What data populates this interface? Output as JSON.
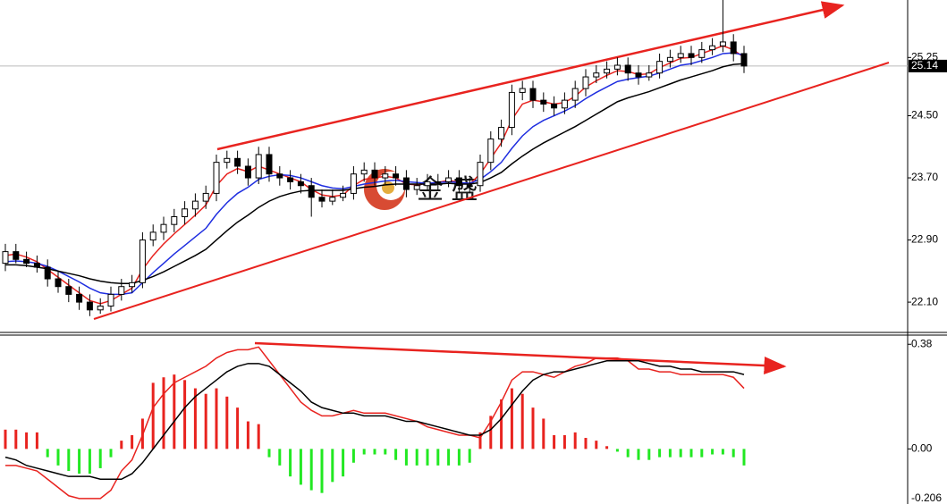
{
  "chart_data": [
    {
      "type": "candlestick",
      "open": [
        22.6,
        22.75,
        22.65,
        22.6,
        22.55,
        22.4,
        22.3,
        22.2,
        22.1,
        22.0,
        22.05,
        22.2,
        22.3,
        22.35,
        22.9,
        23.0,
        23.1,
        23.2,
        23.3,
        23.4,
        23.5,
        23.9,
        23.95,
        23.85,
        23.7,
        24.0,
        23.75,
        23.7,
        23.65,
        23.6,
        23.45,
        23.4,
        23.45,
        23.5,
        23.75,
        23.8,
        23.7,
        23.75,
        23.7,
        23.55,
        23.6,
        23.65,
        23.65,
        23.7,
        23.6,
        23.6,
        23.9,
        24.2,
        24.35,
        24.8,
        24.85,
        24.7,
        24.65,
        24.6,
        24.7,
        24.85,
        25.0,
        25.05,
        25.1,
        25.15,
        25.05,
        25.0,
        25.05,
        25.2,
        25.25,
        25.3,
        25.25,
        25.35,
        25.4,
        25.45,
        25.3
      ],
      "high": [
        22.85,
        22.85,
        22.75,
        22.7,
        22.65,
        22.5,
        22.4,
        22.3,
        22.2,
        22.15,
        22.3,
        22.4,
        22.45,
        23.0,
        23.1,
        23.2,
        23.3,
        23.4,
        23.5,
        23.6,
        24.0,
        24.05,
        24.05,
        23.95,
        24.1,
        24.1,
        23.85,
        23.8,
        23.75,
        23.7,
        23.55,
        23.55,
        23.6,
        23.85,
        23.9,
        23.9,
        23.85,
        23.85,
        23.8,
        23.7,
        23.75,
        23.75,
        23.8,
        23.8,
        23.7,
        24.0,
        24.3,
        24.45,
        24.9,
        24.95,
        24.95,
        24.8,
        24.75,
        24.8,
        24.95,
        25.1,
        25.15,
        25.2,
        25.25,
        25.25,
        25.15,
        25.15,
        25.3,
        25.35,
        25.4,
        25.4,
        25.45,
        25.5,
        25.99,
        25.55,
        25.4
      ],
      "low": [
        22.5,
        22.6,
        22.55,
        22.48,
        22.3,
        22.22,
        22.1,
        22.0,
        21.92,
        21.95,
        21.98,
        22.12,
        22.22,
        22.28,
        22.82,
        22.9,
        23.0,
        23.1,
        23.2,
        23.3,
        23.4,
        23.82,
        23.75,
        23.6,
        23.62,
        23.65,
        23.6,
        23.55,
        23.5,
        23.2,
        23.32,
        23.35,
        23.4,
        23.42,
        23.65,
        23.6,
        23.62,
        23.6,
        23.45,
        23.48,
        23.55,
        23.55,
        23.58,
        23.5,
        23.5,
        23.52,
        23.8,
        24.1,
        24.25,
        24.7,
        24.6,
        24.55,
        24.5,
        24.52,
        24.6,
        24.75,
        24.92,
        24.98,
        25.02,
        24.95,
        24.9,
        24.95,
        24.98,
        25.12,
        25.18,
        25.15,
        25.18,
        25.28,
        25.32,
        25.2,
        25.05
      ],
      "close": [
        22.75,
        22.65,
        22.6,
        22.55,
        22.4,
        22.3,
        22.2,
        22.1,
        22.0,
        22.05,
        22.2,
        22.3,
        22.35,
        22.9,
        23.0,
        23.1,
        23.2,
        23.3,
        23.4,
        23.5,
        23.9,
        23.95,
        23.85,
        23.7,
        24.0,
        23.75,
        23.7,
        23.65,
        23.6,
        23.45,
        23.4,
        23.45,
        23.5,
        23.75,
        23.8,
        23.7,
        23.75,
        23.7,
        23.55,
        23.6,
        23.65,
        23.65,
        23.7,
        23.6,
        23.6,
        23.9,
        24.2,
        24.35,
        24.8,
        24.85,
        24.7,
        24.65,
        24.6,
        24.7,
        24.85,
        25.0,
        25.05,
        25.1,
        25.15,
        25.05,
        25.0,
        25.05,
        25.2,
        25.25,
        25.3,
        25.25,
        25.35,
        25.4,
        25.45,
        25.3,
        25.14
      ],
      "up_color": "#ffffff",
      "down_color": "#000000",
      "lines": [
        {
          "color": "#e8231f",
          "values": [
            22.7,
            22.72,
            22.68,
            22.62,
            22.52,
            22.42,
            22.32,
            22.22,
            22.12,
            22.08,
            22.12,
            22.2,
            22.28,
            22.52,
            22.7,
            22.85,
            22.98,
            23.1,
            23.22,
            23.35,
            23.6,
            23.75,
            23.82,
            23.78,
            23.85,
            23.8,
            23.75,
            23.7,
            23.65,
            23.55,
            23.48,
            23.46,
            23.48,
            23.6,
            23.68,
            23.7,
            23.72,
            23.7,
            23.62,
            23.61,
            23.63,
            23.64,
            23.67,
            23.64,
            23.62,
            23.75,
            23.95,
            24.15,
            24.45,
            24.65,
            24.7,
            24.68,
            24.65,
            24.67,
            24.75,
            24.87,
            24.95,
            25.02,
            25.08,
            25.07,
            25.03,
            25.04,
            25.12,
            25.18,
            25.24,
            25.25,
            25.3,
            25.35,
            25.4,
            25.35,
            25.25
          ]
        },
        {
          "color": "#1f2ee0",
          "values": [
            22.62,
            22.63,
            22.62,
            22.6,
            22.56,
            22.5,
            22.43,
            22.36,
            22.28,
            22.22,
            22.2,
            22.2,
            22.22,
            22.35,
            22.48,
            22.6,
            22.72,
            22.83,
            22.94,
            23.05,
            23.23,
            23.38,
            23.5,
            23.58,
            23.68,
            23.72,
            23.74,
            23.73,
            23.7,
            23.65,
            23.6,
            23.57,
            23.56,
            23.59,
            23.62,
            23.64,
            23.66,
            23.67,
            23.65,
            23.64,
            23.63,
            23.64,
            23.65,
            23.64,
            23.63,
            23.68,
            23.78,
            23.9,
            24.08,
            24.24,
            24.36,
            24.44,
            24.5,
            24.56,
            24.63,
            24.72,
            24.8,
            24.87,
            24.94,
            24.97,
            24.99,
            25.01,
            25.05,
            25.1,
            25.15,
            25.17,
            25.21,
            25.25,
            25.3,
            25.31,
            25.28
          ]
        },
        {
          "color": "#000000",
          "values": [
            22.58,
            22.58,
            22.57,
            22.55,
            22.53,
            22.5,
            22.47,
            22.44,
            22.4,
            22.37,
            22.35,
            22.34,
            22.34,
            22.38,
            22.43,
            22.49,
            22.56,
            22.63,
            22.7,
            22.78,
            22.9,
            23.02,
            23.13,
            23.22,
            23.32,
            23.4,
            23.46,
            23.5,
            23.53,
            23.54,
            23.54,
            23.54,
            23.54,
            23.56,
            23.58,
            23.59,
            23.61,
            23.62,
            23.62,
            23.62,
            23.62,
            23.62,
            23.63,
            23.62,
            23.62,
            23.64,
            23.7,
            23.77,
            23.88,
            23.98,
            24.07,
            24.15,
            24.22,
            24.29,
            24.36,
            24.44,
            24.52,
            24.6,
            24.68,
            24.73,
            24.77,
            24.81,
            24.86,
            24.91,
            24.96,
            25.0,
            25.04,
            25.08,
            25.13,
            25.16,
            25.17
          ]
        }
      ],
      "ylim": [
        21.71,
        25.99
      ],
      "yticks": [
        25.25,
        {
          "value": 24.5,
          "label": "24.50"
        },
        {
          "value": 23.7,
          "label": "23.70"
        },
        {
          "value": 22.9,
          "label": "22.90"
        },
        {
          "value": 22.1,
          "label": "22.10"
        }
      ],
      "current_price": 25.14,
      "watermark": "金 盛"
    },
    {
      "type": "macd",
      "histogram": [
        0.07,
        0.07,
        0.06,
        0.06,
        -0.03,
        -0.06,
        -0.08,
        -0.09,
        -0.09,
        -0.07,
        -0.03,
        0.03,
        0.05,
        0.11,
        0.24,
        0.26,
        0.27,
        0.25,
        0.22,
        0.2,
        0.22,
        0.19,
        0.15,
        0.1,
        0.09,
        -0.03,
        -0.06,
        -0.1,
        -0.13,
        -0.15,
        -0.16,
        -0.12,
        -0.1,
        -0.05,
        -0.02,
        -0.02,
        -0.02,
        -0.04,
        -0.06,
        -0.06,
        -0.06,
        -0.06,
        -0.06,
        -0.06,
        -0.05,
        0.06,
        0.12,
        0.18,
        0.22,
        0.2,
        0.15,
        0.11,
        0.05,
        0.05,
        0.06,
        0.04,
        0.03,
        0.01,
        -0.01,
        -0.03,
        -0.04,
        -0.04,
        -0.03,
        -0.03,
        -0.03,
        -0.03,
        -0.03,
        -0.02,
        -0.02,
        -0.03,
        -0.06
      ],
      "positive_color": "#e8231f",
      "negative_color": "#22e822",
      "lines": [
        {
          "color": "#e8231f",
          "values": [
            -0.06,
            -0.06,
            -0.07,
            -0.08,
            -0.11,
            -0.14,
            -0.17,
            -0.18,
            -0.18,
            -0.18,
            -0.15,
            -0.08,
            -0.04,
            0.05,
            0.15,
            0.2,
            0.24,
            0.26,
            0.28,
            0.3,
            0.33,
            0.35,
            0.36,
            0.36,
            0.37,
            0.32,
            0.27,
            0.22,
            0.17,
            0.14,
            0.12,
            0.12,
            0.13,
            0.14,
            0.13,
            0.13,
            0.13,
            0.12,
            0.11,
            0.1,
            0.08,
            0.07,
            0.06,
            0.05,
            0.05,
            0.04,
            0.1,
            0.17,
            0.25,
            0.28,
            0.28,
            0.27,
            0.26,
            0.28,
            0.3,
            0.31,
            0.33,
            0.33,
            0.33,
            0.32,
            0.29,
            0.29,
            0.28,
            0.28,
            0.27,
            0.27,
            0.27,
            0.27,
            0.27,
            0.26,
            0.22
          ]
        },
        {
          "color": "#000000",
          "values": [
            -0.03,
            -0.04,
            -0.06,
            -0.07,
            -0.08,
            -0.09,
            -0.1,
            -0.1,
            -0.1,
            -0.11,
            -0.11,
            -0.11,
            -0.09,
            -0.05,
            0.0,
            0.05,
            0.1,
            0.15,
            0.19,
            0.22,
            0.25,
            0.28,
            0.3,
            0.31,
            0.31,
            0.3,
            0.27,
            0.24,
            0.21,
            0.17,
            0.15,
            0.14,
            0.13,
            0.13,
            0.12,
            0.12,
            0.12,
            0.11,
            0.1,
            0.1,
            0.09,
            0.08,
            0.07,
            0.06,
            0.05,
            0.05,
            0.07,
            0.11,
            0.16,
            0.21,
            0.25,
            0.27,
            0.28,
            0.28,
            0.29,
            0.3,
            0.31,
            0.32,
            0.32,
            0.32,
            0.32,
            0.31,
            0.3,
            0.3,
            0.29,
            0.29,
            0.28,
            0.28,
            0.28,
            0.28,
            0.27
          ]
        }
      ],
      "ylim": [
        -0.2,
        0.41
      ],
      "yticks": [
        0.38,
        {
          "value": 0,
          "label": "0.00"
        },
        -0.206
      ]
    }
  ]
}
